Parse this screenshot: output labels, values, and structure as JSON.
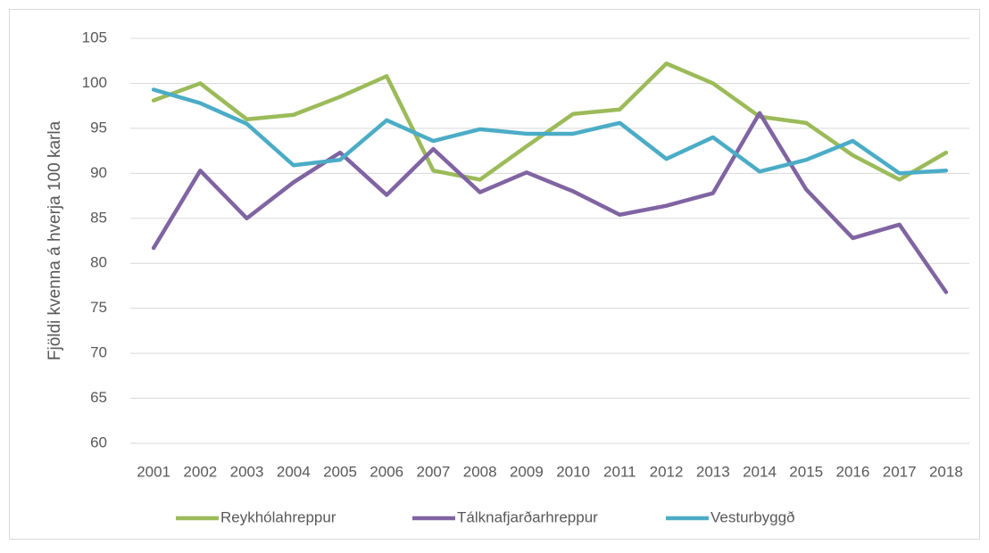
{
  "chart_data": {
    "type": "line",
    "y_label": "Fjöldi kvenna á hverja 100 karla",
    "categories": [
      "2001",
      "2002",
      "2003",
      "2004",
      "2005",
      "2006",
      "2007",
      "2008",
      "2009",
      "2010",
      "2011",
      "2012",
      "2013",
      "2014",
      "2015",
      "2016",
      "2017",
      "2018"
    ],
    "series": [
      {
        "name": "Reykhólahreppur",
        "color": "#9bbb59",
        "values": [
          98.1,
          100,
          96,
          96.5,
          98.5,
          100.8,
          90.3,
          89.3,
          93,
          96.6,
          97.1,
          102.2,
          100,
          96.3,
          95.6,
          92,
          89.3,
          92.3
        ]
      },
      {
        "name": "Tálknafjarðarhreppur",
        "color": "#8064a2",
        "values": [
          81.7,
          90.3,
          85,
          89,
          92.3,
          87.6,
          92.7,
          87.9,
          90.1,
          88,
          85.4,
          86.4,
          87.8,
          96.7,
          88.2,
          82.8,
          84.3,
          76.8
        ]
      },
      {
        "name": "Vesturbyggð",
        "color": "#4bacc6",
        "values": [
          99.3,
          97.8,
          95.5,
          90.9,
          91.5,
          95.9,
          93.6,
          94.9,
          94.4,
          94.4,
          95.6,
          91.6,
          94,
          90.2,
          91.5,
          93.6,
          90,
          90.3
        ]
      }
    ],
    "ylim": [
      60,
      105
    ],
    "yticks": [
      60,
      65,
      70,
      75,
      80,
      85,
      90,
      95,
      100,
      105
    ],
    "grid": true,
    "legend": "bottom"
  }
}
